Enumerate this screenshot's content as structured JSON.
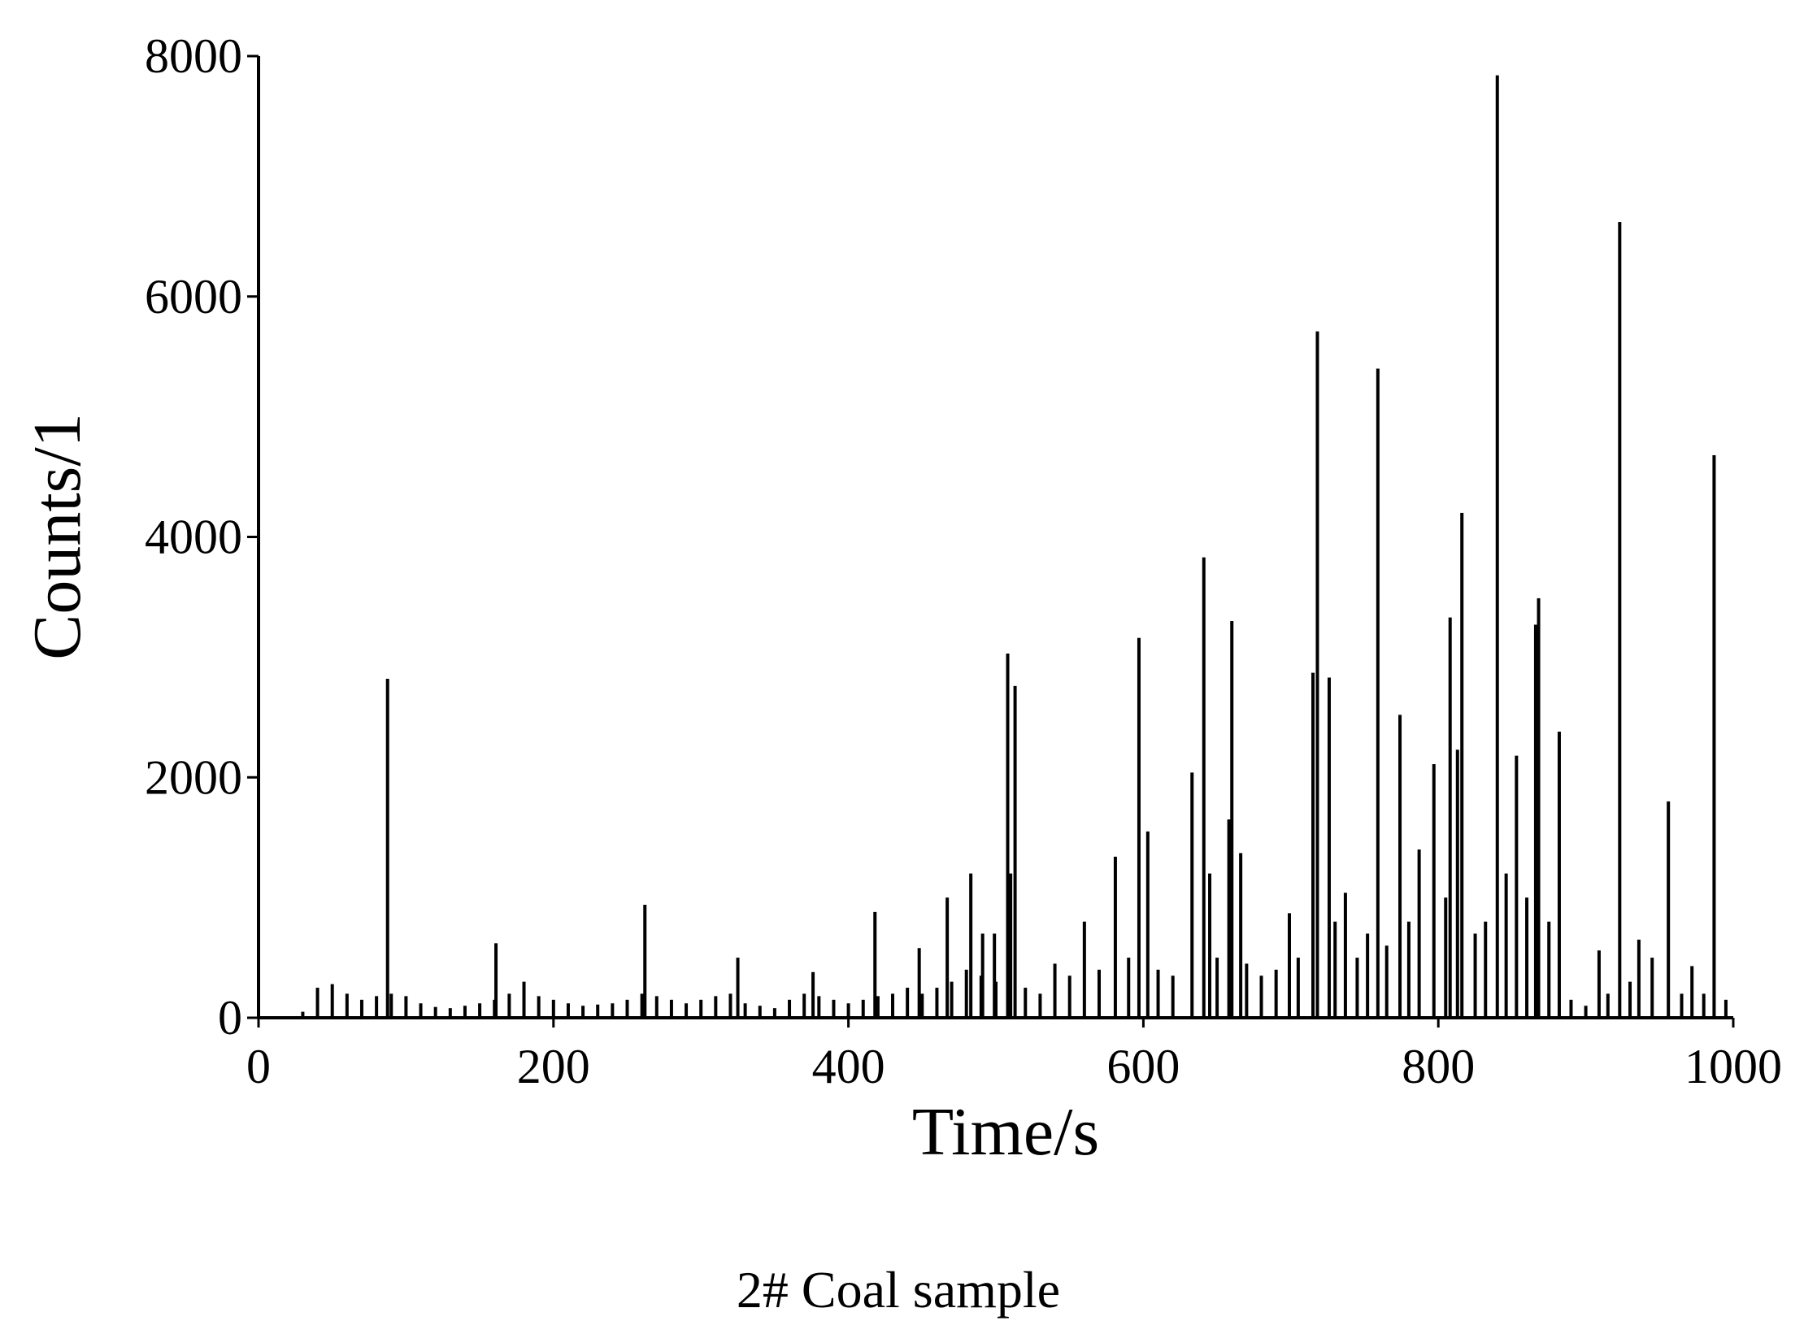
{
  "chart_data": {
    "type": "bar",
    "caption": "2# Coal sample",
    "x_label": "Time/s",
    "y_label": "Counts/1",
    "color": "#000000",
    "grid": false,
    "xlim": [
      0,
      1000
    ],
    "xticks": [
      0,
      200,
      400,
      600,
      800,
      1000
    ],
    "ylim": [
      0,
      8000
    ],
    "yticks": [
      0,
      2000,
      4000,
      6000,
      8000
    ],
    "x": [
      30,
      40,
      50,
      60,
      70,
      80,
      87.5,
      90,
      100,
      110,
      120,
      130,
      140,
      150,
      160,
      161,
      170,
      180,
      190,
      200,
      210,
      220,
      230,
      240,
      250,
      260,
      262,
      270,
      280,
      290,
      300,
      310,
      320,
      325,
      330,
      340,
      350,
      360,
      370,
      376,
      380,
      390,
      400,
      410,
      418,
      420,
      430,
      440,
      448,
      450,
      460,
      467,
      470,
      480,
      483,
      490,
      491,
      499,
      500,
      508,
      510,
      513,
      520,
      530,
      540,
      550,
      560,
      570,
      581,
      590,
      597,
      603,
      610,
      620,
      633,
      641,
      645,
      650,
      658,
      660,
      666,
      670,
      680,
      690,
      699,
      705,
      715,
      718,
      726,
      730,
      737,
      745,
      752,
      759,
      765,
      774,
      780,
      787,
      797,
      805,
      808,
      813,
      816,
      825,
      832,
      840,
      846,
      853,
      860,
      866,
      868,
      875,
      882,
      890,
      900,
      909,
      915,
      923,
      930,
      936,
      945,
      956,
      965,
      972,
      980,
      987,
      995
    ],
    "values": [
      50,
      250,
      280,
      200,
      150,
      180,
      2820,
      200,
      180,
      120,
      90,
      80,
      100,
      120,
      150,
      620,
      200,
      300,
      180,
      150,
      120,
      100,
      110,
      120,
      150,
      200,
      940,
      180,
      150,
      120,
      150,
      180,
      200,
      500,
      120,
      100,
      80,
      150,
      200,
      380,
      180,
      150,
      120,
      150,
      880,
      180,
      200,
      250,
      580,
      200,
      250,
      1000,
      300,
      400,
      1200,
      350,
      700,
      700,
      300,
      3030,
      1200,
      2760,
      250,
      200,
      450,
      350,
      800,
      400,
      1340,
      500,
      3160,
      1550,
      400,
      350,
      2040,
      3830,
      1200,
      500,
      1650,
      3300,
      1370,
      450,
      350,
      400,
      870,
      500,
      2870,
      5710,
      2830,
      800,
      1040,
      500,
      700,
      5400,
      600,
      2520,
      800,
      1400,
      2110,
      1000,
      3330,
      2230,
      4200,
      700,
      800,
      7840,
      1200,
      2180,
      1000,
      3270,
      3490,
      800,
      2380,
      150,
      100,
      560,
      200,
      6620,
      300,
      650,
      500,
      1800,
      200,
      430,
      200,
      4680,
      150
    ]
  }
}
